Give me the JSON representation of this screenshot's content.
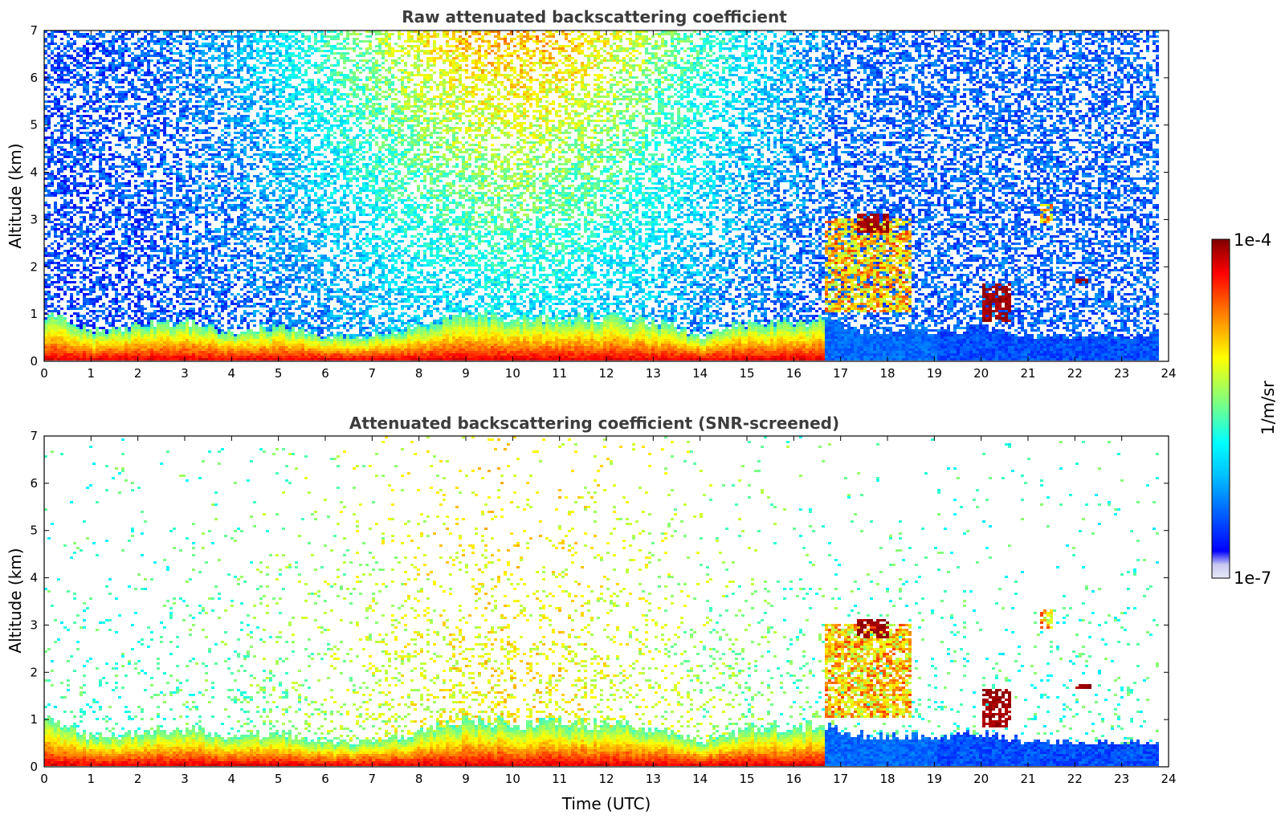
{
  "chart_data": [
    {
      "type": "heatmap",
      "title": "Raw attenuated backscattering coefficient",
      "xlabel": "",
      "ylabel": "Altitude (km)",
      "xlim": [
        0,
        24
      ],
      "ylim": [
        0,
        7
      ],
      "x_ticks": [
        "0",
        "1",
        "2",
        "3",
        "4",
        "5",
        "6",
        "7",
        "8",
        "9",
        "10",
        "11",
        "12",
        "13",
        "14",
        "15",
        "16",
        "17",
        "18",
        "19",
        "20",
        "21",
        "22",
        "23",
        "24"
      ],
      "y_ticks": [
        "0",
        "1",
        "2",
        "3",
        "4",
        "5",
        "6",
        "7"
      ],
      "data_coverage_end_hour": 23.83,
      "boundary_layer_top_km": [
        [
          0,
          1.0
        ],
        [
          1,
          0.6
        ],
        [
          2,
          0.7
        ],
        [
          3,
          0.8
        ],
        [
          4,
          0.6
        ],
        [
          5,
          0.7
        ],
        [
          6,
          0.5
        ],
        [
          7,
          0.5
        ],
        [
          8,
          0.7
        ],
        [
          9,
          1.0
        ],
        [
          10,
          0.9
        ],
        [
          11,
          0.9
        ],
        [
          12,
          0.9
        ],
        [
          13,
          0.8
        ],
        [
          14,
          0.5
        ],
        [
          15,
          0.8
        ],
        [
          16,
          0.8
        ],
        [
          16.6,
          0.9
        ],
        [
          17,
          0.7
        ],
        [
          18,
          0.6
        ],
        [
          19,
          0.6
        ],
        [
          20,
          0.7
        ],
        [
          21,
          0.5
        ],
        [
          22,
          0.5
        ],
        [
          23,
          0.5
        ],
        [
          23.8,
          0.5
        ]
      ],
      "features": [
        {
          "name": "elevated aerosol plume",
          "x_hours": [
            16.6,
            18.5
          ],
          "altitude_km": [
            1.0,
            3.0
          ]
        },
        {
          "name": "cloud",
          "x_hours": [
            17.3,
            18.0
          ],
          "altitude_km": [
            2.7,
            3.1
          ]
        },
        {
          "name": "cloud",
          "x_hours": [
            20.0,
            20.6
          ],
          "altitude_km": [
            0.8,
            1.6
          ]
        },
        {
          "name": "cloud",
          "x_hours": [
            22.0,
            22.3
          ],
          "altitude_km": [
            1.6,
            1.7
          ]
        },
        {
          "name": "aerosol layer",
          "x_hours": [
            21.2,
            21.5
          ],
          "altitude_km": [
            2.9,
            3.3
          ]
        }
      ]
    },
    {
      "type": "heatmap",
      "title": "Attenuated backscattering coefficient (SNR-screened)",
      "xlabel": "Time (UTC)",
      "ylabel": "Altitude (km)",
      "xlim": [
        0,
        24
      ],
      "ylim": [
        0,
        7
      ],
      "x_ticks": [
        "0",
        "1",
        "2",
        "3",
        "4",
        "5",
        "6",
        "7",
        "8",
        "9",
        "10",
        "11",
        "12",
        "13",
        "14",
        "15",
        "16",
        "17",
        "18",
        "19",
        "20",
        "21",
        "22",
        "23",
        "24"
      ],
      "y_ticks": [
        "0",
        "1",
        "2",
        "3",
        "4",
        "5",
        "6",
        "7"
      ],
      "data_coverage_end_hour": 23.83
    }
  ],
  "colorbar": {
    "label": "1/m/sr",
    "max_label": "1e-4",
    "min_label": "1e-7",
    "scale": "log",
    "range": [
      1e-07,
      0.0001
    ],
    "colormap": "jet",
    "colors": [
      "#e8e8f8",
      "#0000ff",
      "#00bfff",
      "#00ffff",
      "#7fff7f",
      "#ffff00",
      "#ff7f00",
      "#ff0000",
      "#800000"
    ]
  }
}
